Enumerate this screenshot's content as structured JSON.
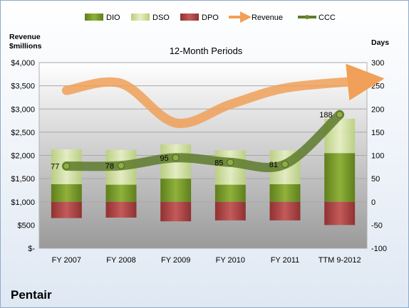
{
  "company": "Pentair",
  "chart_data": {
    "type": "bar",
    "title": "12-Month Periods",
    "left_axis_label_lines": [
      "Revenue",
      "$millions"
    ],
    "right_axis_label": "Days",
    "categories": [
      "FY 2007",
      "FY 2008",
      "FY 2009",
      "FY 2010",
      "FY 2011",
      "TTM 9-2012"
    ],
    "left_ticks": [
      "$-",
      "$500",
      "$1,000",
      "$1,500",
      "$2,000",
      "$2,500",
      "$3,000",
      "$3,500",
      "$4,000"
    ],
    "right_ticks": [
      "-100",
      "-50",
      "0",
      "50",
      "100",
      "150",
      "200",
      "250",
      "300"
    ],
    "ylim_left": [
      0,
      4000
    ],
    "ylim_right": [
      -100,
      300
    ],
    "grid": true,
    "legend_position": "top",
    "legend": [
      "DIO",
      "DSO",
      "DPO",
      "Revenue",
      "CCC"
    ],
    "series": [
      {
        "name": "DIO",
        "axis": "right",
        "kind": "stacked-bar",
        "color": "#7a9a2e",
        "values": [
          38,
          37,
          50,
          37,
          38,
          105
        ]
      },
      {
        "name": "DSO",
        "axis": "right",
        "kind": "stacked-bar",
        "color": "#d7e6a8",
        "values": [
          75,
          75,
          74,
          74,
          73,
          74
        ]
      },
      {
        "name": "DPO",
        "axis": "right",
        "kind": "negative-bar",
        "color": "#b44a4a",
        "values": [
          -35,
          -34,
          -42,
          -40,
          -40,
          -50
        ]
      },
      {
        "name": "Revenue",
        "axis": "left",
        "kind": "arrow-line",
        "color": "#f0a058",
        "values": [
          3400,
          3550,
          2700,
          3100,
          3450,
          3600
        ]
      },
      {
        "name": "CCC",
        "axis": "right",
        "kind": "line",
        "color": "#5e7a2b",
        "values": [
          77,
          78,
          95,
          85,
          81,
          188
        ],
        "data_labels": [
          "77",
          "78",
          "95",
          "85",
          "81",
          "188"
        ]
      }
    ]
  }
}
